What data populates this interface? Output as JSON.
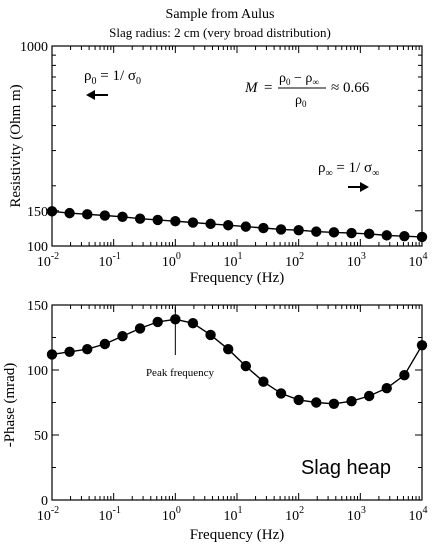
{
  "figure": {
    "title": "Sample from Aulus",
    "subtitle": "Slag radius: 2 cm (very broad distribution)"
  },
  "chart_data": [
    {
      "type": "line",
      "xscale": "log",
      "yscale": "log",
      "xlim": [
        0.01,
        10000
      ],
      "ylim": [
        100,
        1000
      ],
      "xticks": [
        {
          "value": 0.01,
          "base": "10",
          "exp": "-2"
        },
        {
          "value": 0.1,
          "base": "10",
          "exp": "-1"
        },
        {
          "value": 1,
          "base": "10",
          "exp": "0"
        },
        {
          "value": 10,
          "base": "10",
          "exp": "1"
        },
        {
          "value": 100,
          "base": "10",
          "exp": "2"
        },
        {
          "value": 1000,
          "base": "10",
          "exp": "3"
        },
        {
          "value": 10000,
          "base": "10",
          "exp": "4"
        }
      ],
      "yticks": [
        {
          "value": 100,
          "label": "100"
        },
        {
          "value": 150,
          "label": "150"
        },
        {
          "value": 1000,
          "label": "1000"
        }
      ],
      "xlabel": "Frequency (Hz)",
      "ylabel": "Resistivity (Ohm m)",
      "series": [
        {
          "x": [
            0.01,
            0.0193,
            0.0373,
            0.072,
            0.139,
            0.268,
            0.518,
            1.0,
            1.93,
            3.73,
            7.2,
            13.9,
            26.8,
            51.8,
            100,
            193,
            373,
            720,
            1390,
            2680,
            5180,
            10000
          ],
          "y": [
            149,
            146,
            144,
            142,
            140,
            137,
            135,
            133,
            131,
            129,
            127,
            125,
            123,
            121,
            120,
            118,
            117,
            116,
            115,
            113,
            112,
            111
          ]
        }
      ],
      "annotations": {
        "rho0_main": "ρ",
        "rho0_sub": "0",
        "rho0_mid": " = 1/ σ",
        "rho0_sub2": "0",
        "rhoinf_main": "ρ",
        "rhoinf_sub": "∞",
        "rhoinf_mid": " = 1/ σ",
        "rhoinf_sub2": "∞",
        "m_label": "M",
        "m_eq": "=",
        "m_num_a": "ρ",
        "m_num_a_sub": "0",
        "m_num_op": " − ρ",
        "m_num_b_sub": "∞",
        "m_den": "ρ",
        "m_den_sub": "0",
        "m_value": "≈ 0.66"
      }
    },
    {
      "type": "line",
      "xscale": "log",
      "yscale": "linear",
      "xlim": [
        0.01,
        10000
      ],
      "ylim": [
        0,
        150
      ],
      "xticks": [
        {
          "value": 0.01,
          "base": "10",
          "exp": "-2"
        },
        {
          "value": 0.1,
          "base": "10",
          "exp": "-1"
        },
        {
          "value": 1,
          "base": "10",
          "exp": "0"
        },
        {
          "value": 10,
          "base": "10",
          "exp": "1"
        },
        {
          "value": 100,
          "base": "10",
          "exp": "2"
        },
        {
          "value": 1000,
          "base": "10",
          "exp": "3"
        },
        {
          "value": 10000,
          "base": "10",
          "exp": "4"
        }
      ],
      "yticks": [
        {
          "value": 0,
          "label": "0"
        },
        {
          "value": 50,
          "label": "50"
        },
        {
          "value": 100,
          "label": "100"
        },
        {
          "value": 150,
          "label": "150"
        }
      ],
      "xlabel": "Frequency (Hz)",
      "ylabel": "-Phase (mrad)",
      "series": [
        {
          "x": [
            0.01,
            0.0193,
            0.0373,
            0.072,
            0.139,
            0.268,
            0.518,
            1.0,
            1.93,
            3.73,
            7.2,
            13.9,
            26.8,
            51.8,
            100,
            193,
            373,
            720,
            1390,
            2680,
            5180,
            10000
          ],
          "y": [
            112,
            114,
            116,
            120,
            126,
            132,
            137,
            139,
            136,
            127,
            116,
            103,
            91,
            82,
            77,
            75,
            74,
            76,
            80,
            86,
            96,
            119
          ]
        }
      ],
      "annotations": {
        "peak_label": "Peak frequency",
        "peak_x": 1.0,
        "panel_label": "Slag heap"
      }
    }
  ]
}
